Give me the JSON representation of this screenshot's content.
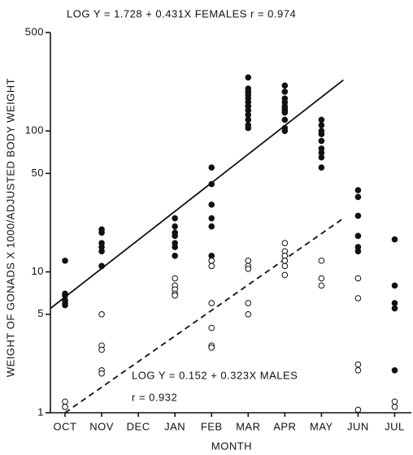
{
  "chart_data": {
    "type": "scatter",
    "y_label": "WEIGHT OF GONADS X 1000/ADJUSTED BODY WEIGHT",
    "x_label": "MONTH",
    "categories": [
      "OCT",
      "NOV",
      "DEC",
      "JAN",
      "FEB",
      "MAR",
      "APR",
      "MAY",
      "JUN",
      "JUL"
    ],
    "xlim": [
      -0.4,
      9.5
    ],
    "ylim": [
      1,
      500
    ],
    "log_y": true,
    "yticks": [
      1,
      5,
      10,
      50,
      100,
      500
    ],
    "series": [
      {
        "name": "FEMALES",
        "filled": true,
        "color": "#111111",
        "values": [
          [
            12,
            7,
            6.8,
            6.3,
            6,
            5.8
          ],
          [
            20,
            19,
            16,
            15,
            14,
            11,
            11
          ],
          [],
          [
            24,
            21,
            19,
            18,
            16,
            15,
            13
          ],
          [
            55,
            42,
            30,
            24,
            21,
            13,
            12
          ],
          [
            240,
            200,
            190,
            180,
            170,
            160,
            150,
            140,
            130,
            120,
            110,
            105,
            150
          ],
          [
            210,
            190,
            170,
            160,
            150,
            145,
            140,
            135,
            120,
            105,
            100
          ],
          [
            120,
            110,
            100,
            95,
            85,
            75,
            70,
            65,
            55
          ],
          [
            38,
            34,
            25,
            18,
            15,
            14
          ],
          [
            17,
            8,
            6,
            5.5,
            2
          ]
        ]
      },
      {
        "name": "MALES",
        "filled": false,
        "color": "#111111",
        "values": [
          [
            1.2,
            1.1
          ],
          [
            5,
            3,
            2.8,
            2,
            1.9
          ],
          [],
          [
            9,
            8,
            7.5,
            7,
            6.8
          ],
          [
            12,
            11,
            6,
            4,
            3,
            2.9
          ],
          [
            12,
            11,
            10.5,
            6,
            5
          ],
          [
            16,
            14,
            13,
            12,
            11,
            9.5
          ],
          [
            12,
            9,
            8
          ],
          [
            9,
            6.5,
            2.2,
            2,
            1.05
          ],
          [
            1.2,
            1.1
          ]
        ]
      }
    ],
    "fit_lines": [
      {
        "x": [
          -0.4,
          7.6
        ],
        "values": [
          5.5,
          230
        ],
        "dashed": false
      },
      {
        "x": [
          0,
          7.6
        ],
        "values": [
          1,
          24
        ],
        "dashed": true
      }
    ],
    "annotations": [
      "LOG Y = 1.728 + 0.431X   FEMALES   r = 0.974",
      "LOG Y = 0.152 + 0.323X   MALES",
      "r = 0.932"
    ]
  }
}
